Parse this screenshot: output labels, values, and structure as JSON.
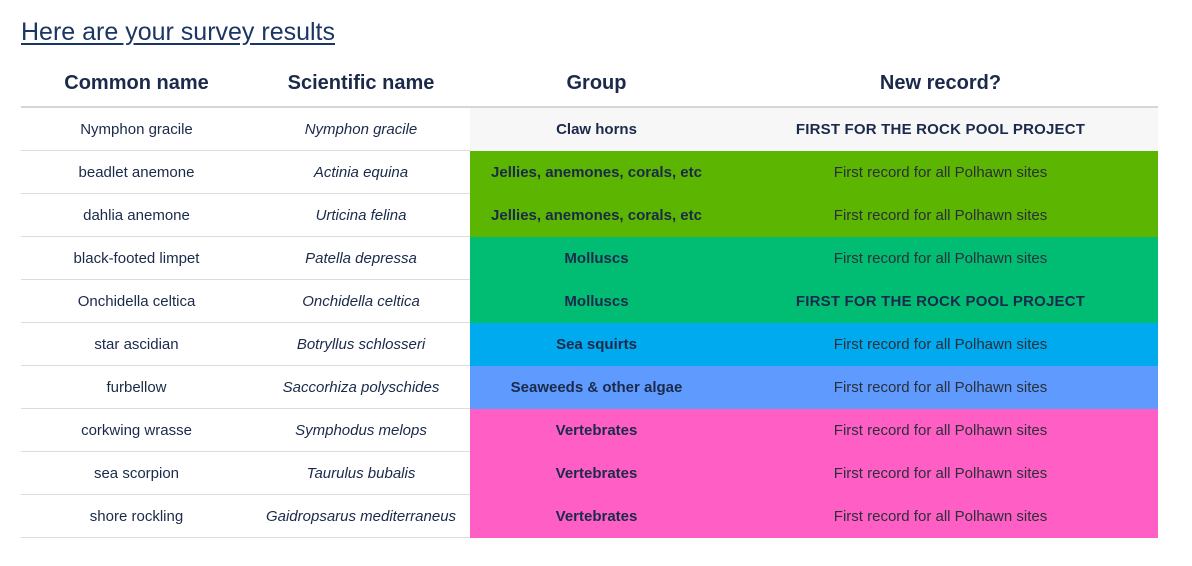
{
  "title": "Here are your survey results",
  "headers": {
    "common": "Common name",
    "scientific": "Scientific name",
    "group": "Group",
    "record": "New record?"
  },
  "group_colors": {
    "Claw horns": "#f7f7f7",
    "Jellies, anemones, corals, etc": "#5cb500",
    "Molluscs": "#00bd73",
    "Sea squirts": "#00aaef",
    "Seaweeds & other algae": "#5f9bff",
    "Vertebrates": "#ff5fc4"
  },
  "rows": [
    {
      "common": "Nymphon gracile",
      "scientific": "Nymphon gracile",
      "group": "Claw horns",
      "record": "FIRST FOR THE ROCK POOL PROJECT",
      "record_strong": true
    },
    {
      "common": "beadlet anemone",
      "scientific": "Actinia equina",
      "group": "Jellies, anemones, corals, etc",
      "record": "First record for all Polhawn sites",
      "record_strong": false
    },
    {
      "common": "dahlia anemone",
      "scientific": "Urticina felina",
      "group": "Jellies, anemones, corals, etc",
      "record": "First record for all Polhawn sites",
      "record_strong": false
    },
    {
      "common": "black-footed limpet",
      "scientific": "Patella depressa",
      "group": "Molluscs",
      "record": "First record for all Polhawn sites",
      "record_strong": false
    },
    {
      "common": "Onchidella celtica",
      "scientific": "Onchidella celtica",
      "group": "Molluscs",
      "record": "FIRST FOR THE ROCK POOL PROJECT",
      "record_strong": true
    },
    {
      "common": "star ascidian",
      "scientific": "Botryllus schlosseri",
      "group": "Sea squirts",
      "record": "First record for all Polhawn sites",
      "record_strong": false
    },
    {
      "common": "furbellow",
      "scientific": "Saccorhiza polyschides",
      "group": "Seaweeds & other algae",
      "record": "First record for all Polhawn sites",
      "record_strong": false
    },
    {
      "common": "corkwing wrasse",
      "scientific": "Symphodus melops",
      "group": "Vertebrates",
      "record": "First record for all Polhawn sites",
      "record_strong": false
    },
    {
      "common": "sea scorpion",
      "scientific": "Taurulus bubalis",
      "group": "Vertebrates",
      "record": "First record for all Polhawn sites",
      "record_strong": false
    },
    {
      "common": "shore rockling",
      "scientific": "Gaidropsarus mediterraneus",
      "group": "Vertebrates",
      "record": "First record for all Polhawn sites",
      "record_strong": false
    }
  ]
}
